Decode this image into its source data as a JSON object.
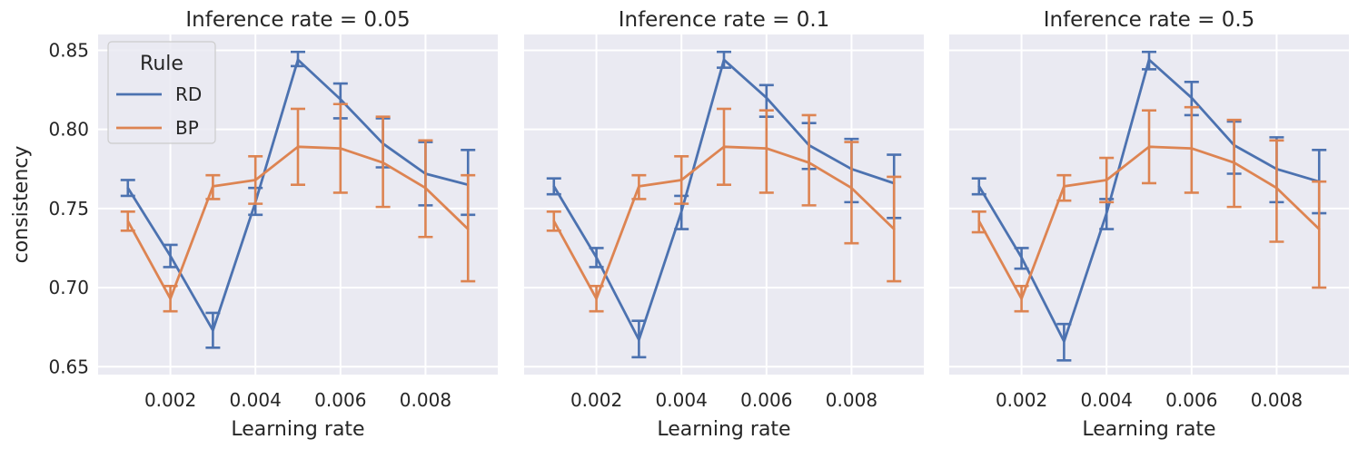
{
  "chart_data": {
    "type": "line",
    "ylabel": "consistency",
    "xlabel": "Learning rate",
    "ylim": [
      0.645,
      0.86
    ],
    "xlim": [
      0.0003,
      0.0097
    ],
    "yticks": [
      0.65,
      0.7,
      0.75,
      0.8,
      0.85
    ],
    "ytick_labels": [
      "0.65",
      "0.70",
      "0.75",
      "0.80",
      "0.85"
    ],
    "xticks": [
      0.002,
      0.004,
      0.006,
      0.008
    ],
    "xtick_labels": [
      "0.002",
      "0.004",
      "0.006",
      "0.008"
    ],
    "x": [
      0.001,
      0.002,
      0.003,
      0.004,
      0.005,
      0.006,
      0.007,
      0.008,
      0.009
    ],
    "legend": {
      "title": "Rule",
      "entries": [
        "RD",
        "BP"
      ],
      "placement": "top-left of first panel"
    },
    "colors": {
      "RD": "#4c72b0",
      "BP": "#dd8452"
    },
    "panels": [
      {
        "title": "Inference rate = 0.05",
        "series": [
          {
            "name": "RD",
            "values": [
              0.763,
              0.72,
              0.673,
              0.754,
              0.844,
              0.819,
              0.791,
              0.772,
              0.765
            ],
            "err_low": [
              0.758,
              0.713,
              0.662,
              0.746,
              0.84,
              0.807,
              0.776,
              0.752,
              0.746
            ],
            "err_high": [
              0.768,
              0.727,
              0.684,
              0.763,
              0.849,
              0.829,
              0.807,
              0.792,
              0.787
            ]
          },
          {
            "name": "BP",
            "values": [
              0.742,
              0.693,
              0.764,
              0.768,
              0.789,
              0.788,
              0.779,
              0.763,
              0.737
            ],
            "err_low": [
              0.736,
              0.685,
              0.756,
              0.753,
              0.765,
              0.76,
              0.751,
              0.732,
              0.704
            ],
            "err_high": [
              0.748,
              0.701,
              0.771,
              0.783,
              0.813,
              0.816,
              0.808,
              0.793,
              0.771
            ]
          }
        ]
      },
      {
        "title": "Inference rate = 0.1",
        "series": [
          {
            "name": "RD",
            "values": [
              0.764,
              0.719,
              0.667,
              0.748,
              0.844,
              0.82,
              0.79,
              0.775,
              0.766
            ],
            "err_low": [
              0.759,
              0.713,
              0.656,
              0.737,
              0.839,
              0.808,
              0.775,
              0.754,
              0.744
            ],
            "err_high": [
              0.769,
              0.725,
              0.679,
              0.758,
              0.849,
              0.828,
              0.804,
              0.794,
              0.784
            ]
          },
          {
            "name": "BP",
            "values": [
              0.742,
              0.693,
              0.764,
              0.768,
              0.789,
              0.788,
              0.779,
              0.763,
              0.737
            ],
            "err_low": [
              0.736,
              0.685,
              0.756,
              0.753,
              0.765,
              0.76,
              0.752,
              0.728,
              0.704
            ],
            "err_high": [
              0.748,
              0.701,
              0.771,
              0.783,
              0.813,
              0.812,
              0.809,
              0.792,
              0.77
            ]
          }
        ]
      },
      {
        "title": "Inference rate = 0.5",
        "series": [
          {
            "name": "RD",
            "values": [
              0.764,
              0.719,
              0.666,
              0.747,
              0.844,
              0.82,
              0.79,
              0.775,
              0.767
            ],
            "err_low": [
              0.759,
              0.712,
              0.654,
              0.737,
              0.838,
              0.809,
              0.772,
              0.754,
              0.747
            ],
            "err_high": [
              0.769,
              0.725,
              0.677,
              0.756,
              0.849,
              0.83,
              0.805,
              0.795,
              0.787
            ]
          },
          {
            "name": "BP",
            "values": [
              0.742,
              0.693,
              0.764,
              0.768,
              0.789,
              0.788,
              0.779,
              0.763,
              0.737
            ],
            "err_low": [
              0.735,
              0.685,
              0.755,
              0.754,
              0.766,
              0.76,
              0.751,
              0.729,
              0.7
            ],
            "err_high": [
              0.748,
              0.701,
              0.771,
              0.782,
              0.812,
              0.814,
              0.806,
              0.793,
              0.767
            ]
          }
        ]
      }
    ]
  }
}
